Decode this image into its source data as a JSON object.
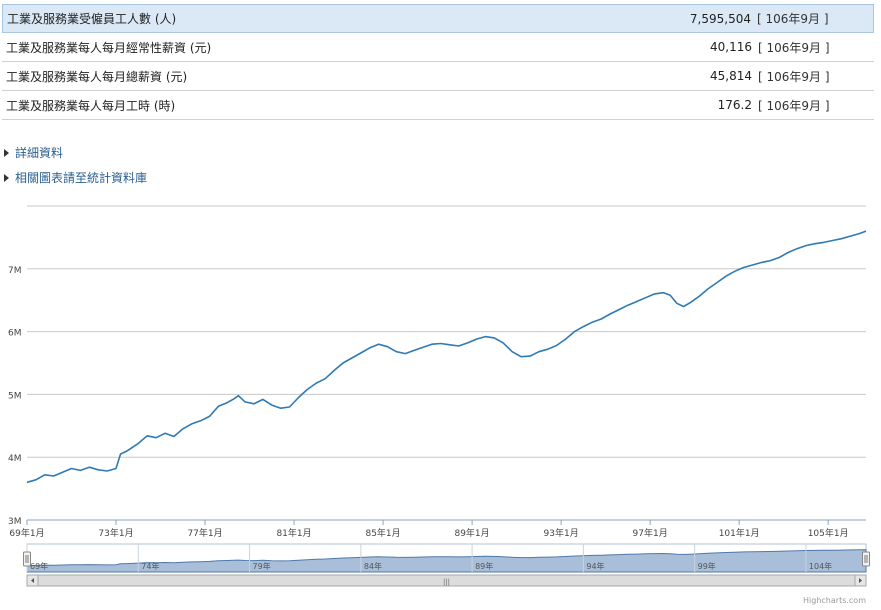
{
  "stats": [
    {
      "label": "工業及服務業受僱員工人數 (人)",
      "value": "7,595,504",
      "period": "[ 106年9月 ]"
    },
    {
      "label": "工業及服務業每人每月經常性薪資 (元)",
      "value": "40,116",
      "period": "[ 106年9月 ]"
    },
    {
      "label": "工業及服務業每人每月總薪資 (元)",
      "value": "45,814",
      "period": "[ 106年9月 ]"
    },
    {
      "label": "工業及服務業每人每月工時 (時)",
      "value": "176.2",
      "period": "[ 106年9月 ]"
    }
  ],
  "links": [
    {
      "label": "詳細資料"
    },
    {
      "label": "相關圖表請至統計資料庫"
    }
  ],
  "chart_data": {
    "type": "line",
    "title": "",
    "xlabel": "",
    "ylabel": "",
    "ylim": [
      3000000,
      8000000
    ],
    "y_ticks": [
      3000000,
      4000000,
      5000000,
      6000000,
      7000000
    ],
    "y_tick_labels": [
      "3M",
      "4M",
      "5M",
      "6M",
      "7M"
    ],
    "x_range": [
      69,
      106.7
    ],
    "x_ticks": [
      69,
      73,
      77,
      81,
      85,
      89,
      93,
      97,
      101,
      105
    ],
    "x_tick_labels": [
      "69年1月",
      "73年1月",
      "77年1月",
      "81年1月",
      "85年1月",
      "89年1月",
      "93年1月",
      "97年1月",
      "101年1月",
      "105年1月"
    ],
    "series": [
      {
        "color": "#2f7ab5",
        "points": [
          [
            69.0,
            3600000
          ],
          [
            69.4,
            3640000
          ],
          [
            69.8,
            3720000
          ],
          [
            70.2,
            3700000
          ],
          [
            70.6,
            3760000
          ],
          [
            71.0,
            3820000
          ],
          [
            71.4,
            3790000
          ],
          [
            71.8,
            3840000
          ],
          [
            72.2,
            3800000
          ],
          [
            72.6,
            3780000
          ],
          [
            73.0,
            3820000
          ],
          [
            73.2,
            4050000
          ],
          [
            73.5,
            4100000
          ],
          [
            74.0,
            4220000
          ],
          [
            74.4,
            4340000
          ],
          [
            74.8,
            4310000
          ],
          [
            75.2,
            4380000
          ],
          [
            75.6,
            4330000
          ],
          [
            76.0,
            4450000
          ],
          [
            76.4,
            4530000
          ],
          [
            76.8,
            4580000
          ],
          [
            77.2,
            4650000
          ],
          [
            77.6,
            4810000
          ],
          [
            78.0,
            4870000
          ],
          [
            78.3,
            4930000
          ],
          [
            78.5,
            4980000
          ],
          [
            78.8,
            4880000
          ],
          [
            79.2,
            4850000
          ],
          [
            79.6,
            4920000
          ],
          [
            80.0,
            4830000
          ],
          [
            80.4,
            4780000
          ],
          [
            80.8,
            4800000
          ],
          [
            81.2,
            4950000
          ],
          [
            81.6,
            5080000
          ],
          [
            82.0,
            5180000
          ],
          [
            82.4,
            5250000
          ],
          [
            82.8,
            5380000
          ],
          [
            83.2,
            5500000
          ],
          [
            83.6,
            5580000
          ],
          [
            84.0,
            5660000
          ],
          [
            84.4,
            5740000
          ],
          [
            84.8,
            5800000
          ],
          [
            85.2,
            5760000
          ],
          [
            85.6,
            5680000
          ],
          [
            86.0,
            5650000
          ],
          [
            86.4,
            5700000
          ],
          [
            86.8,
            5750000
          ],
          [
            87.2,
            5800000
          ],
          [
            87.6,
            5810000
          ],
          [
            88.0,
            5790000
          ],
          [
            88.4,
            5770000
          ],
          [
            88.8,
            5820000
          ],
          [
            89.2,
            5880000
          ],
          [
            89.6,
            5920000
          ],
          [
            90.0,
            5900000
          ],
          [
            90.4,
            5820000
          ],
          [
            90.8,
            5680000
          ],
          [
            91.2,
            5600000
          ],
          [
            91.6,
            5610000
          ],
          [
            92.0,
            5680000
          ],
          [
            92.4,
            5720000
          ],
          [
            92.8,
            5780000
          ],
          [
            93.2,
            5880000
          ],
          [
            93.6,
            6000000
          ],
          [
            94.0,
            6080000
          ],
          [
            94.4,
            6150000
          ],
          [
            94.8,
            6200000
          ],
          [
            95.2,
            6280000
          ],
          [
            95.6,
            6350000
          ],
          [
            96.0,
            6420000
          ],
          [
            96.4,
            6480000
          ],
          [
            96.8,
            6540000
          ],
          [
            97.2,
            6600000
          ],
          [
            97.6,
            6620000
          ],
          [
            97.9,
            6580000
          ],
          [
            98.2,
            6450000
          ],
          [
            98.5,
            6400000
          ],
          [
            98.8,
            6460000
          ],
          [
            99.2,
            6560000
          ],
          [
            99.6,
            6680000
          ],
          [
            100.0,
            6780000
          ],
          [
            100.4,
            6880000
          ],
          [
            100.8,
            6960000
          ],
          [
            101.2,
            7020000
          ],
          [
            101.6,
            7060000
          ],
          [
            102.0,
            7100000
          ],
          [
            102.4,
            7130000
          ],
          [
            102.8,
            7180000
          ],
          [
            103.2,
            7260000
          ],
          [
            103.6,
            7320000
          ],
          [
            104.0,
            7370000
          ],
          [
            104.4,
            7400000
          ],
          [
            104.8,
            7420000
          ],
          [
            105.2,
            7450000
          ],
          [
            105.6,
            7480000
          ],
          [
            106.0,
            7520000
          ],
          [
            106.4,
            7560000
          ],
          [
            106.7,
            7600000
          ]
        ]
      }
    ],
    "navigator": {
      "x_tick_labels": [
        "69年",
        "74年",
        "79年",
        "84年",
        "89年",
        "94年",
        "99年",
        "104年"
      ],
      "x_ticks": [
        69,
        74,
        79,
        84,
        89,
        94,
        99,
        104
      ],
      "fill": "#a9bfd9",
      "scroll_grip": "|||"
    },
    "credit": "Highcharts.com"
  }
}
